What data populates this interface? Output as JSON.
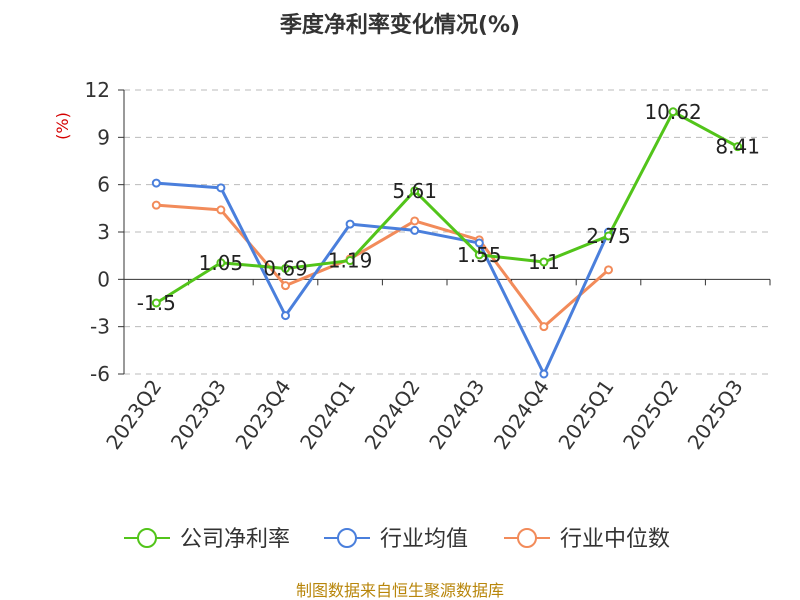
{
  "chart_data": {
    "type": "line",
    "title": "季度净利率变化情况(%)",
    "ylabel": "(%)",
    "xlabel": "",
    "ylim": [
      -6,
      12
    ],
    "yticks": [
      12,
      9,
      6,
      3,
      0,
      -3,
      -6
    ],
    "grid": true,
    "legend_position": "bottom",
    "categories": [
      "2023Q2",
      "2023Q3",
      "2023Q4",
      "2024Q1",
      "2024Q2",
      "2024Q3",
      "2024Q4",
      "2025Q1",
      "2025Q2",
      "2025Q3"
    ],
    "series": [
      {
        "name": "公司净利率",
        "color": "#52C41A",
        "values": [
          -1.5,
          1.05,
          0.69,
          1.19,
          5.61,
          1.55,
          1.1,
          2.75,
          10.62,
          8.41
        ],
        "labels": [
          "-1.5",
          "1.05",
          "0.69",
          "1.19",
          "5.61",
          "1.55",
          "1.1",
          "2.75",
          "10.62",
          "8.41"
        ]
      },
      {
        "name": "行业均值",
        "color": "#4A7FDC",
        "values": [
          6.1,
          5.8,
          -2.3,
          3.5,
          3.1,
          2.3,
          -6.0,
          3.0,
          null,
          null
        ]
      },
      {
        "name": "行业中位数",
        "color": "#F28B5A",
        "values": [
          4.7,
          4.4,
          -0.4,
          1.3,
          3.7,
          2.5,
          -3.0,
          0.6,
          null,
          null
        ]
      }
    ],
    "unit_color": "#D40000"
  },
  "source": {
    "text": "制图数据来自恒生聚源数据库",
    "color": "#B8860B"
  }
}
